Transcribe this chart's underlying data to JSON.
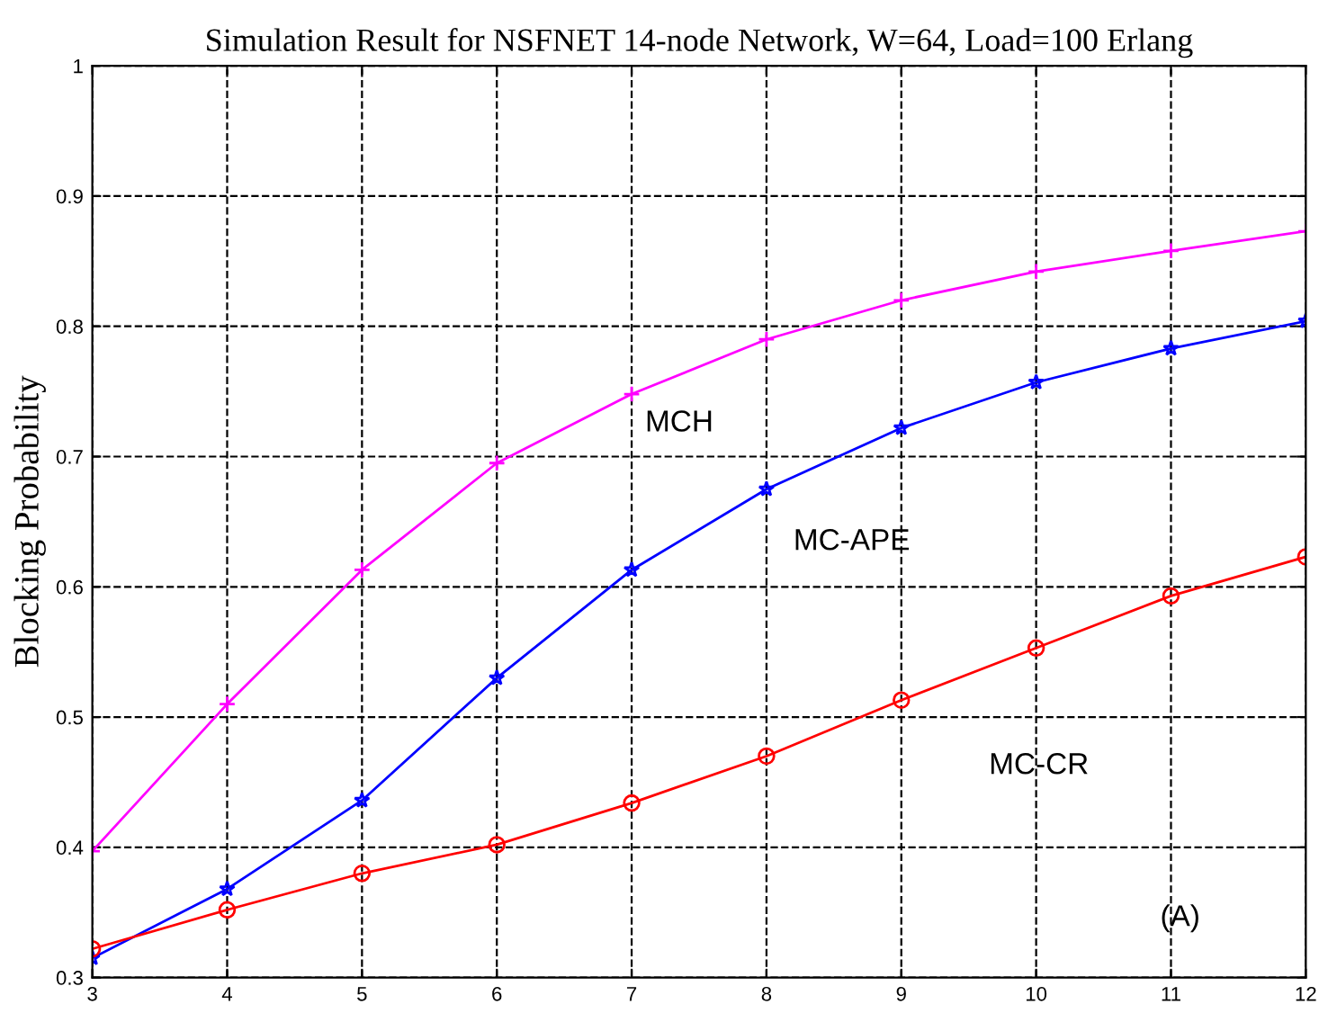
{
  "chart_data": {
    "type": "line",
    "title": "Simulation Result for NSFNET 14-node Network, W=64, Load=100 Erlang",
    "ylabel": "Blocking Probability",
    "x": [
      3,
      4,
      5,
      6,
      7,
      8,
      9,
      10,
      11,
      12
    ],
    "series": [
      {
        "name": "MCH",
        "color": "#ff00ff",
        "marker": "cross",
        "values": [
          0.397,
          0.51,
          0.613,
          0.695,
          0.748,
          0.79,
          0.82,
          0.842,
          0.858,
          0.873
        ]
      },
      {
        "name": "MC-APE",
        "color": "#0000ff",
        "marker": "star",
        "values": [
          0.315,
          0.368,
          0.436,
          0.53,
          0.613,
          0.675,
          0.722,
          0.757,
          0.783,
          0.804
        ]
      },
      {
        "name": "MC-CR",
        "color": "#ff0000",
        "marker": "circle",
        "values": [
          0.322,
          0.352,
          0.38,
          0.402,
          0.434,
          0.47,
          0.513,
          0.553,
          0.593,
          0.623
        ]
      }
    ],
    "xlim": [
      3,
      12
    ],
    "xticks": [
      3,
      4,
      5,
      6,
      7,
      8,
      9,
      10,
      11,
      12
    ],
    "ylim": [
      0.3,
      1
    ],
    "yticks": [
      0.3,
      0.4,
      0.5,
      0.6,
      0.7,
      0.8,
      0.9,
      1
    ],
    "grid": true,
    "line_style": "solid",
    "annotations": [
      "(A)"
    ]
  }
}
